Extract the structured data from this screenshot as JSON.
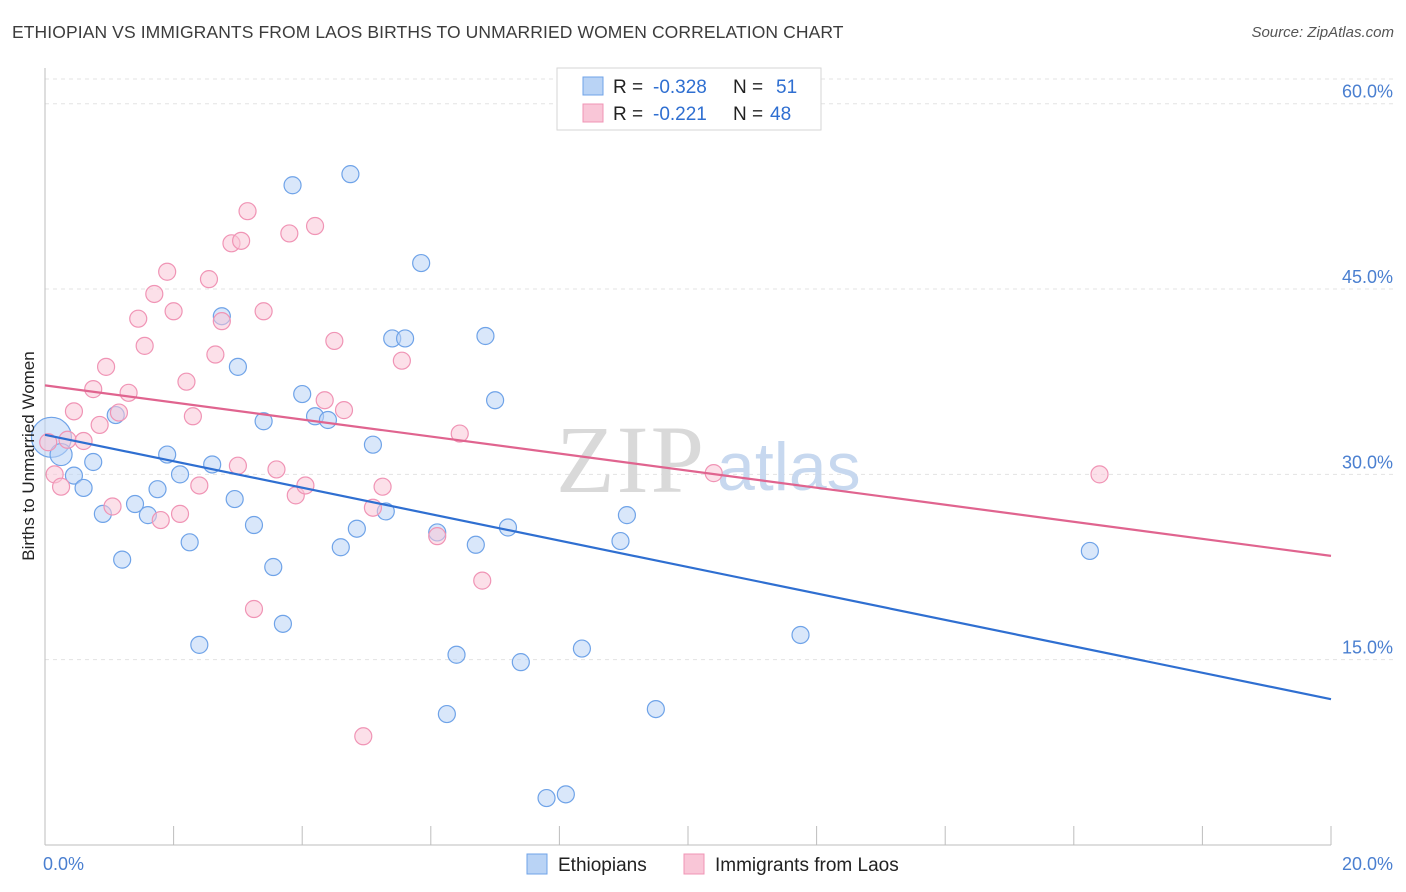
{
  "header": {
    "title": "ETHIOPIAN VS IMMIGRANTS FROM LAOS BIRTHS TO UNMARRIED WOMEN CORRELATION CHART",
    "source": "Source: ZipAtlas.com"
  },
  "watermark": {
    "zip": "ZIP",
    "atlas": "atlas"
  },
  "legend": {
    "r_label": "R =",
    "n_label": "N =",
    "rows": [
      {
        "r": "-0.328",
        "n": "51"
      },
      {
        "r": "-0.221",
        "n": "48"
      }
    ]
  },
  "chart_data": {
    "type": "scatter",
    "xlabel": "",
    "ylabel": "Births to Unmarried Women",
    "xlim": [
      0,
      20
    ],
    "ylim": [
      0,
      62
    ],
    "x_tick_labels": [
      "0.0%",
      "20.0%"
    ],
    "y_ticks": [
      15,
      30,
      45,
      60
    ],
    "y_tick_labels": [
      "15.0%",
      "30.0%",
      "45.0%",
      "60.0%"
    ],
    "grid": true,
    "legend_position": "top-center",
    "series": [
      {
        "name": "Ethiopians",
        "color": "#6fa3e8",
        "fill": "#b9d3f5",
        "line_color": "#2f6fd1",
        "trend": [
          [
            0,
            33.2
          ],
          [
            20,
            11.8
          ]
        ],
        "points": [
          [
            0.1,
            33.0
          ],
          [
            0.25,
            31.6
          ],
          [
            0.45,
            29.9
          ],
          [
            0.6,
            28.9
          ],
          [
            0.75,
            31.0
          ],
          [
            0.9,
            26.8
          ],
          [
            1.1,
            34.8
          ],
          [
            1.2,
            23.1
          ],
          [
            1.4,
            27.6
          ],
          [
            1.6,
            26.7
          ],
          [
            1.75,
            28.8
          ],
          [
            1.9,
            31.6
          ],
          [
            2.1,
            30.0
          ],
          [
            2.25,
            24.5
          ],
          [
            2.4,
            16.2
          ],
          [
            2.6,
            30.8
          ],
          [
            2.75,
            42.8
          ],
          [
            2.95,
            28.0
          ],
          [
            3.0,
            38.7
          ],
          [
            3.25,
            25.9
          ],
          [
            3.4,
            34.3
          ],
          [
            3.55,
            22.5
          ],
          [
            3.7,
            17.9
          ],
          [
            3.85,
            53.4
          ],
          [
            4.0,
            36.5
          ],
          [
            4.2,
            34.7
          ],
          [
            4.4,
            34.4
          ],
          [
            4.6,
            24.1
          ],
          [
            4.75,
            54.3
          ],
          [
            4.85,
            25.6
          ],
          [
            5.1,
            32.4
          ],
          [
            5.3,
            27.0
          ],
          [
            5.4,
            41.0
          ],
          [
            5.6,
            41.0
          ],
          [
            5.85,
            47.1
          ],
          [
            6.1,
            25.3
          ],
          [
            6.25,
            10.6
          ],
          [
            6.4,
            15.4
          ],
          [
            6.7,
            24.3
          ],
          [
            6.85,
            41.2
          ],
          [
            7.0,
            36.0
          ],
          [
            7.2,
            25.7
          ],
          [
            7.4,
            14.8
          ],
          [
            7.8,
            3.8
          ],
          [
            8.1,
            4.1
          ],
          [
            8.35,
            15.9
          ],
          [
            8.95,
            24.6
          ],
          [
            9.05,
            26.7
          ],
          [
            9.5,
            11.0
          ],
          [
            11.75,
            17.0
          ],
          [
            16.25,
            23.8
          ]
        ]
      },
      {
        "name": "Immigrants from Laos",
        "color": "#f094b5",
        "fill": "#f9c6d7",
        "line_color": "#e0648f",
        "trend": [
          [
            0,
            37.2
          ],
          [
            20,
            23.4
          ]
        ],
        "points": [
          [
            0.05,
            32.6
          ],
          [
            0.15,
            30.0
          ],
          [
            0.25,
            29.0
          ],
          [
            0.35,
            32.8
          ],
          [
            0.45,
            35.1
          ],
          [
            0.6,
            32.7
          ],
          [
            0.75,
            36.9
          ],
          [
            0.85,
            34.0
          ],
          [
            0.95,
            38.7
          ],
          [
            1.05,
            27.4
          ],
          [
            1.15,
            35.0
          ],
          [
            1.3,
            36.6
          ],
          [
            1.45,
            42.6
          ],
          [
            1.55,
            40.4
          ],
          [
            1.7,
            44.6
          ],
          [
            1.8,
            26.3
          ],
          [
            1.9,
            46.4
          ],
          [
            2.0,
            43.2
          ],
          [
            2.1,
            26.8
          ],
          [
            2.2,
            37.5
          ],
          [
            2.3,
            34.7
          ],
          [
            2.4,
            29.1
          ],
          [
            2.55,
            45.8
          ],
          [
            2.65,
            39.7
          ],
          [
            2.75,
            42.4
          ],
          [
            2.9,
            48.7
          ],
          [
            3.0,
            30.7
          ],
          [
            3.05,
            48.9
          ],
          [
            3.15,
            51.3
          ],
          [
            3.25,
            19.1
          ],
          [
            3.4,
            43.2
          ],
          [
            3.6,
            30.4
          ],
          [
            3.8,
            49.5
          ],
          [
            3.9,
            28.3
          ],
          [
            4.05,
            29.1
          ],
          [
            4.2,
            50.1
          ],
          [
            4.35,
            36.0
          ],
          [
            4.5,
            40.8
          ],
          [
            4.65,
            35.2
          ],
          [
            4.95,
            8.8
          ],
          [
            5.1,
            27.3
          ],
          [
            5.25,
            29.0
          ],
          [
            5.55,
            39.2
          ],
          [
            6.1,
            25.0
          ],
          [
            6.45,
            33.3
          ],
          [
            6.8,
            21.4
          ],
          [
            10.4,
            30.1
          ],
          [
            16.4,
            30.0
          ]
        ]
      }
    ]
  }
}
